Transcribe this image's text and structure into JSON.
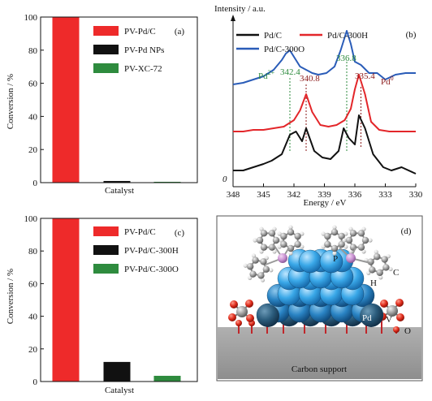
{
  "chart_data": [
    {
      "panel": "(a)",
      "type": "bar",
      "xlabel": "Catalyst",
      "ylabel": "Conversion / %",
      "ylim": [
        0,
        100
      ],
      "yticks": [
        "0",
        "20",
        "40",
        "60",
        "80",
        "100"
      ],
      "legend_position": "top-right",
      "series": [
        {
          "name": "PV-Pd/C",
          "value": 100,
          "color": "#ee2a2a"
        },
        {
          "name": "PV-Pd NPs",
          "value": 1,
          "color": "#111111"
        },
        {
          "name": "PV-XC-72",
          "value": 0.5,
          "color": "#2e8b3e"
        }
      ]
    },
    {
      "panel": "(b)",
      "type": "line",
      "ylabel": "Intensity / a.u.",
      "xlabel": "Energy / eV",
      "xlim": [
        348,
        330
      ],
      "xticks": [
        "348",
        "345",
        "342",
        "339",
        "336",
        "333",
        "330"
      ],
      "y_origin_label": "0",
      "legend_position": "top",
      "series": [
        {
          "name": "Pd/C",
          "color": "#111111",
          "x": [
            348,
            347,
            346,
            345,
            344.2,
            343.2,
            342.4,
            341.8,
            341.2,
            340.8,
            340.0,
            339.2,
            338.4,
            337.6,
            337.1,
            336.6,
            336.0,
            335.6,
            335.0,
            334.2,
            333.2,
            332.4,
            331.4,
            330
          ],
          "y": [
            0.1,
            0.1,
            0.12,
            0.14,
            0.16,
            0.2,
            0.32,
            0.34,
            0.28,
            0.36,
            0.22,
            0.18,
            0.17,
            0.22,
            0.36,
            0.3,
            0.26,
            0.44,
            0.36,
            0.2,
            0.12,
            0.1,
            0.12,
            0.08
          ]
        },
        {
          "name": "Pd/C-300H",
          "color": "#e3262a",
          "x": [
            348,
            347,
            346,
            345,
            344,
            343,
            342,
            341.4,
            340.8,
            340.2,
            339.4,
            338.6,
            337.8,
            337.0,
            336.4,
            336.0,
            335.6,
            335.0,
            334.4,
            333.6,
            332.6,
            331.4,
            330
          ],
          "y": [
            0.34,
            0.34,
            0.35,
            0.35,
            0.36,
            0.37,
            0.41,
            0.47,
            0.57,
            0.46,
            0.38,
            0.37,
            0.38,
            0.41,
            0.48,
            0.6,
            0.69,
            0.57,
            0.4,
            0.35,
            0.34,
            0.34,
            0.34
          ]
        },
        {
          "name": "Pd/C-300O",
          "color": "#2a5cb8",
          "x": [
            348,
            347,
            346,
            345,
            344,
            343.2,
            342.8,
            342.4,
            342.0,
            341.4,
            340.8,
            340.2,
            339.6,
            338.8,
            338.0,
            337.4,
            336.8,
            336.4,
            336.0,
            335.4,
            334.6,
            333.8,
            333.0,
            332.0,
            331.0,
            330
          ],
          "y": [
            0.63,
            0.64,
            0.66,
            0.68,
            0.72,
            0.78,
            0.82,
            0.84,
            0.8,
            0.74,
            0.72,
            0.7,
            0.69,
            0.7,
            0.74,
            0.84,
            0.96,
            0.88,
            0.77,
            0.75,
            0.7,
            0.7,
            0.66,
            0.69,
            0.7,
            0.7
          ]
        }
      ],
      "annotations": [
        {
          "text": "Pd",
          "sup": "2+",
          "color": "#2e8b3e"
        },
        {
          "text": "342.4",
          "color": "#2e8b3e",
          "x": 342.4
        },
        {
          "text": "340.8",
          "color": "#8b1a1a",
          "x": 340.8
        },
        {
          "text": "336.8",
          "color": "#2e8b3e",
          "x": 336.8
        },
        {
          "text": "335.4",
          "color": "#8b1a1a",
          "x": 335.4
        },
        {
          "text": "Pd",
          "sup": "0",
          "color": "#8b1a1a"
        }
      ]
    },
    {
      "panel": "(c)",
      "type": "bar",
      "xlabel": "Catalyst",
      "ylabel": "Conversion / %",
      "ylim": [
        0,
        100
      ],
      "yticks": [
        "0",
        "20",
        "40",
        "60",
        "80",
        "100"
      ],
      "legend_position": "top-right",
      "series": [
        {
          "name": "PV-Pd/C",
          "value": 100,
          "color": "#ee2a2a"
        },
        {
          "name": "PV-Pd/C-300H",
          "value": 12,
          "color": "#111111"
        },
        {
          "name": "PV-Pd/C-300O",
          "value": 3.5,
          "color": "#2e8b3e"
        }
      ]
    }
  ],
  "model_panel": {
    "panel": "(d)",
    "labels": {
      "p": "P",
      "c": "C",
      "h": "H",
      "pd": "Pd",
      "v": "V",
      "o": "O"
    },
    "support_label": "Carbon support"
  }
}
